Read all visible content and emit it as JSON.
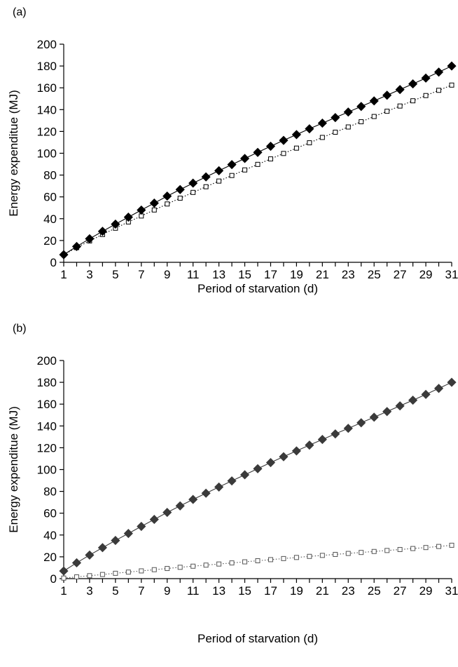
{
  "chart_data": [
    {
      "type": "line",
      "panel_label": "(a)",
      "xlabel": "Period of starvation (d)",
      "ylabel": "Energy expenditue (MJ)",
      "xlim": [
        1,
        31
      ],
      "ylim": [
        0,
        200
      ],
      "x_ticks": [
        1,
        3,
        5,
        7,
        9,
        11,
        13,
        15,
        17,
        19,
        21,
        23,
        25,
        27,
        29,
        31
      ],
      "y_ticks": [
        0,
        20,
        40,
        60,
        80,
        100,
        120,
        140,
        160,
        180,
        200
      ],
      "grid": false,
      "x": [
        1,
        2,
        3,
        4,
        5,
        6,
        7,
        8,
        9,
        10,
        11,
        12,
        13,
        14,
        15,
        16,
        17,
        18,
        19,
        20,
        21,
        22,
        23,
        24,
        25,
        26,
        27,
        28,
        29,
        30,
        31
      ],
      "series": [
        {
          "marker": "filled-diamond",
          "line": "solid",
          "color": "#000000",
          "values": [
            7,
            14.5,
            21.6,
            28.4,
            35,
            41.4,
            47.9,
            54.3,
            60.7,
            66.7,
            72.6,
            78.3,
            84,
            89.6,
            95.2,
            100.8,
            106.4,
            111.8,
            117.1,
            122.4,
            127.6,
            132.7,
            137.8,
            142.9,
            148,
            153.2,
            158.4,
            163.6,
            168.9,
            174.4,
            180
          ]
        },
        {
          "marker": "open-square",
          "line": "dotted",
          "color": "#000000",
          "values": [
            7,
            13.5,
            19.6,
            25.5,
            31.3,
            37,
            42.5,
            48,
            53.5,
            58.8,
            64.1,
            69.3,
            74.5,
            79.6,
            84.7,
            89.8,
            94.8,
            99.8,
            104.7,
            109.6,
            114.5,
            119.3,
            124.1,
            128.9,
            133.7,
            138.5,
            143.3,
            148.1,
            152.9,
            157.7,
            162.5
          ]
        }
      ]
    },
    {
      "type": "line",
      "panel_label": "(b)",
      "xlabel": "Period of starvation (d)",
      "ylabel": "Energy expenditue (MJ)",
      "xlim": [
        1,
        31
      ],
      "ylim": [
        0,
        200
      ],
      "x_ticks": [
        1,
        3,
        5,
        7,
        9,
        11,
        13,
        15,
        17,
        19,
        21,
        23,
        25,
        27,
        29,
        31
      ],
      "y_ticks": [
        0,
        20,
        40,
        60,
        80,
        100,
        120,
        140,
        160,
        180,
        200
      ],
      "grid": false,
      "x": [
        1,
        2,
        3,
        4,
        5,
        6,
        7,
        8,
        9,
        10,
        11,
        12,
        13,
        14,
        15,
        16,
        17,
        18,
        19,
        20,
        21,
        22,
        23,
        24,
        25,
        26,
        27,
        28,
        29,
        30,
        31
      ],
      "series": [
        {
          "marker": "filled-diamond",
          "line": "solid",
          "color": "#3a3a3a",
          "values": [
            7,
            14.5,
            21.6,
            28.4,
            35,
            41.4,
            47.9,
            54.3,
            60.7,
            66.7,
            72.6,
            78.3,
            84,
            89.6,
            95.2,
            100.8,
            106.4,
            111.8,
            117.1,
            122.4,
            127.6,
            132.7,
            137.8,
            142.9,
            148,
            153.2,
            158.4,
            163.6,
            168.9,
            174.4,
            180
          ]
        },
        {
          "marker": "open-square",
          "line": "dotted",
          "color": "#555555",
          "values": [
            0.5,
            1.6,
            2.7,
            3.8,
            4.9,
            6,
            7.1,
            8.2,
            9.3,
            10.4,
            11.4,
            12.4,
            13.4,
            14.4,
            15.4,
            16.4,
            17.4,
            18.4,
            19.4,
            20.4,
            21.3,
            22.2,
            23.1,
            24,
            24.9,
            25.8,
            26.7,
            27.6,
            28.5,
            29.5,
            30.6
          ]
        }
      ]
    }
  ]
}
